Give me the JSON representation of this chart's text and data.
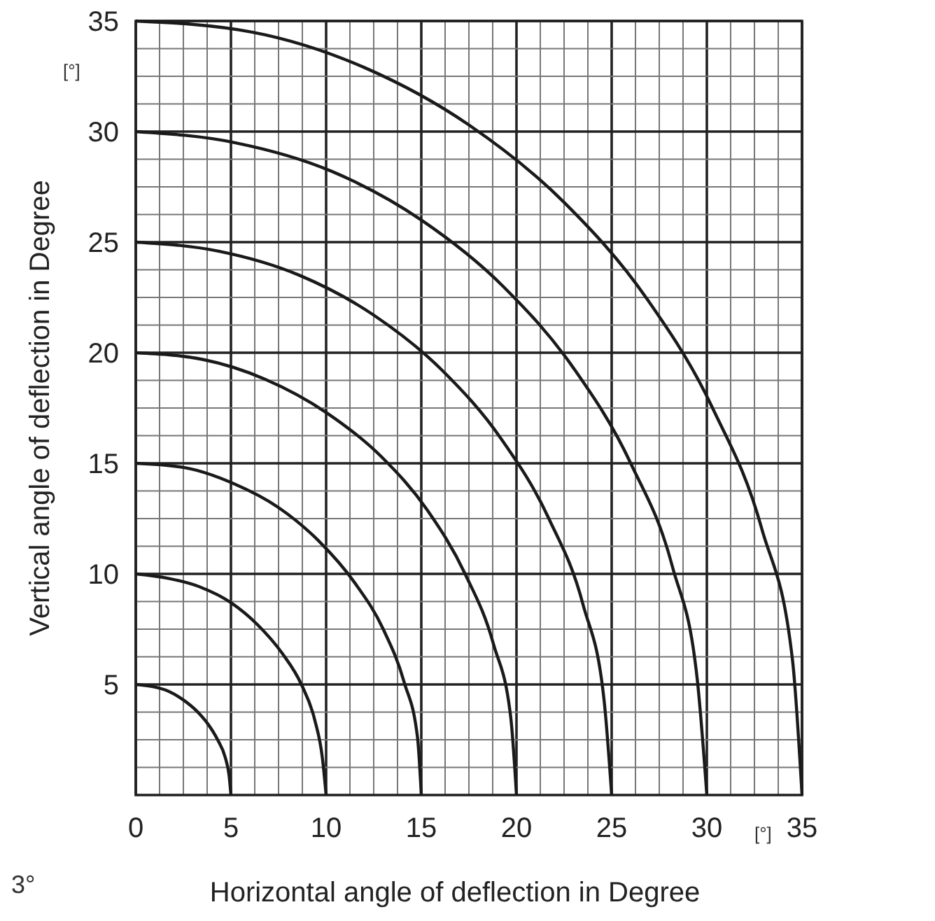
{
  "chart_data": {
    "type": "line",
    "xlabel": "Horizontal angle of deflection in Degree",
    "ylabel": "Vertical angle of deflection in Degree",
    "annotations": [
      "[°]",
      "[°]",
      "3°"
    ],
    "xlim": [
      0,
      35
    ],
    "ylim": [
      0,
      35
    ],
    "xticks": [
      0,
      {
        "value": 1.25,
        "label": null
      },
      {
        "value": 2.5,
        "label": null
      },
      {
        "value": 3.75,
        "label": null
      },
      5,
      {
        "value": 6.25,
        "label": null
      },
      {
        "value": 7.5,
        "label": null
      },
      {
        "value": 8.75,
        "label": null
      },
      10,
      {
        "value": 11.25,
        "label": null
      },
      {
        "value": 12.5,
        "label": null
      },
      {
        "value": 13.75,
        "label": null
      },
      15,
      {
        "value": 16.25,
        "label": null
      },
      {
        "value": 17.5,
        "label": null
      },
      {
        "value": 18.75,
        "label": null
      },
      20,
      {
        "value": 21.25,
        "label": null
      },
      {
        "value": 22.5,
        "label": null
      },
      {
        "value": 23.75,
        "label": null
      },
      25,
      {
        "value": 26.25,
        "label": null
      },
      {
        "value": 27.5,
        "label": null
      },
      {
        "value": 28.75,
        "label": null
      },
      30,
      {
        "value": 31.25,
        "label": null
      },
      {
        "value": 32.5,
        "label": null
      },
      {
        "value": 33.75,
        "label": null
      },
      35
    ],
    "yticks": [
      {
        "value": 0,
        "label": null
      },
      {
        "value": 1.25,
        "label": null
      },
      {
        "value": 2.5,
        "label": null
      },
      {
        "value": 3.75,
        "label": null
      },
      5,
      {
        "value": 6.25,
        "label": null
      },
      {
        "value": 7.5,
        "label": null
      },
      {
        "value": 8.75,
        "label": null
      },
      10,
      {
        "value": 11.25,
        "label": null
      },
      {
        "value": 12.5,
        "label": null
      },
      {
        "value": 13.75,
        "label": null
      },
      15,
      {
        "value": 16.25,
        "label": null
      },
      {
        "value": 17.5,
        "label": null
      },
      {
        "value": 18.75,
        "label": null
      },
      20,
      {
        "value": 21.25,
        "label": null
      },
      {
        "value": 22.5,
        "label": null
      },
      {
        "value": 23.75,
        "label": null
      },
      25,
      {
        "value": 26.25,
        "label": null
      },
      {
        "value": 27.5,
        "label": null
      },
      {
        "value": 28.75,
        "label": null
      },
      30,
      {
        "value": 31.25,
        "label": null
      },
      {
        "value": 32.5,
        "label": null
      },
      {
        "value": 33.75,
        "label": null
      },
      35
    ],
    "grid": true,
    "marker": "none",
    "line_style": "solid",
    "series": [
      {
        "color": "#1a1a1a",
        "x": [
          0,
          0.9,
          1.7,
          2.5,
          3.2,
          3.8,
          4.3,
          4.7,
          4.9,
          5
        ],
        "values": [
          5,
          4.9,
          4.7,
          4.3,
          3.8,
          3.2,
          2.5,
          1.7,
          0.9,
          0
        ]
      },
      {
        "color": "#1a1a1a",
        "x": [
          0,
          1.7,
          3.4,
          5,
          6.4,
          7.7,
          8.7,
          9.4,
          9.8,
          10
        ],
        "values": [
          10,
          9.8,
          9.4,
          8.7,
          7.7,
          6.4,
          5,
          3.4,
          1.7,
          0
        ]
      },
      {
        "color": "#1a1a1a",
        "x": [
          0,
          2.6,
          5.1,
          7.5,
          9.6,
          11.5,
          13,
          14.1,
          14.8,
          15
        ],
        "values": [
          15,
          14.8,
          14.1,
          13,
          11.5,
          9.6,
          7.5,
          5.1,
          2.6,
          0
        ]
      },
      {
        "color": "#1a1a1a",
        "x": [
          0,
          3.5,
          6.8,
          10,
          12.9,
          15.3,
          17.3,
          18.8,
          19.7,
          20
        ],
        "values": [
          20,
          19.7,
          18.8,
          17.3,
          15.3,
          12.9,
          10,
          6.8,
          3.5,
          0
        ]
      },
      {
        "color": "#1a1a1a",
        "x": [
          0,
          4.3,
          8.6,
          12.5,
          16.1,
          19.2,
          21.7,
          23.5,
          24.6,
          25
        ],
        "values": [
          25,
          24.6,
          23.5,
          21.7,
          19.2,
          16.1,
          12.5,
          8.6,
          4.3,
          0
        ]
      },
      {
        "color": "#1a1a1a",
        "x": [
          0,
          5.2,
          10.3,
          15,
          19.3,
          23,
          26,
          28.2,
          29.5,
          30
        ],
        "values": [
          30,
          29.5,
          28.2,
          26,
          23,
          19.3,
          15,
          10.3,
          5.2,
          0
        ]
      },
      {
        "color": "#1a1a1a",
        "x": [
          0,
          6.1,
          12,
          17.5,
          22.5,
          26.8,
          30.3,
          32.9,
          34.5,
          35
        ],
        "values": [
          35,
          34.5,
          32.9,
          30.3,
          26.8,
          22.5,
          17.5,
          12,
          6.1,
          0
        ]
      }
    ]
  }
}
